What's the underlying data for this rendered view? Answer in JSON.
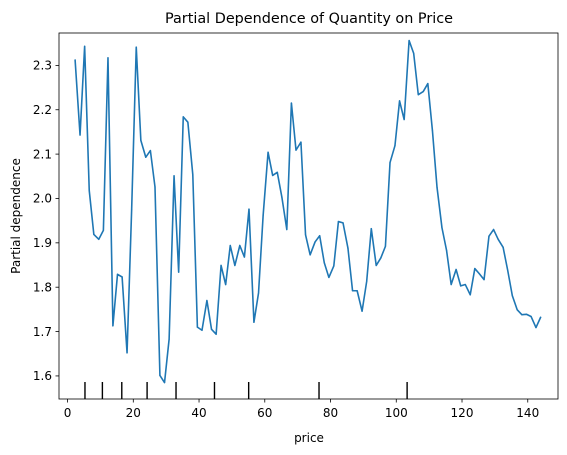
{
  "chart_data": {
    "type": "line",
    "title": "Partial Dependence of Quantity on Price",
    "xlabel": "price",
    "ylabel": "Partial dependence",
    "xlim": [
      -2.6,
      149.2
    ],
    "ylim": [
      1.548,
      2.373
    ],
    "xticks": [
      0,
      20,
      40,
      60,
      80,
      100,
      120,
      140
    ],
    "yticks": [
      1.6,
      1.7,
      1.8,
      1.9,
      2.0,
      2.1,
      2.2,
      2.3
    ],
    "grid": false,
    "line_color": "#1f77b4",
    "series": [
      {
        "x": [
          2.3,
          3.8,
          5.2,
          6.6,
          8.0,
          9.5,
          10.9,
          12.3,
          13.8,
          15.2,
          16.6,
          18.1,
          19.5,
          20.9,
          22.3,
          23.8,
          25.2,
          26.6,
          28.1,
          29.5,
          30.9,
          32.4,
          33.8,
          35.2,
          36.6,
          38.1,
          39.5,
          40.9,
          42.4,
          43.8,
          45.2,
          46.7,
          48.1,
          49.5,
          50.9,
          52.4,
          53.8,
          55.2,
          56.7,
          58.1,
          59.5,
          61.0,
          62.4,
          63.8,
          65.2,
          66.7,
          68.1,
          69.5,
          71.0,
          72.4,
          73.8,
          75.3,
          76.7,
          78.1,
          79.5,
          81.0,
          82.4,
          83.8,
          85.3,
          86.7,
          88.1,
          89.6,
          91.0,
          92.4,
          93.9,
          95.3,
          96.7,
          98.1,
          99.6,
          101.0,
          102.4,
          103.9,
          105.3,
          106.7,
          108.2,
          109.6,
          111.0,
          112.4,
          113.9,
          115.3,
          116.7,
          118.2,
          119.6,
          121.0,
          122.5,
          123.9,
          125.3,
          126.7,
          128.2,
          129.6,
          131.0,
          132.5,
          133.9,
          135.3,
          136.8,
          138.2,
          139.6,
          141.0,
          142.5,
          143.9
        ],
        "y": [
          2.312,
          2.143,
          2.343,
          2.018,
          1.919,
          1.908,
          1.928,
          2.317,
          1.713,
          1.829,
          1.823,
          1.652,
          1.975,
          2.341,
          2.131,
          2.093,
          2.108,
          2.026,
          1.601,
          1.585,
          1.683,
          2.051,
          1.834,
          2.184,
          2.172,
          2.054,
          1.71,
          1.703,
          1.77,
          1.705,
          1.694,
          1.849,
          1.806,
          1.894,
          1.849,
          1.894,
          1.868,
          1.976,
          1.721,
          1.787,
          1.962,
          2.104,
          2.052,
          2.059,
          2.003,
          1.93,
          2.215,
          2.109,
          2.127,
          1.918,
          1.873,
          1.902,
          1.916,
          1.855,
          1.822,
          1.848,
          1.948,
          1.945,
          1.888,
          1.792,
          1.792,
          1.746,
          1.813,
          1.932,
          1.849,
          1.866,
          1.892,
          2.081,
          2.119,
          2.22,
          2.178,
          2.356,
          2.327,
          2.234,
          2.241,
          2.259,
          2.153,
          2.025,
          1.934,
          1.883,
          1.806,
          1.84,
          1.803,
          1.806,
          1.783,
          1.842,
          1.83,
          1.817,
          1.915,
          1.93,
          1.908,
          1.89,
          1.838,
          1.781,
          1.749,
          1.738,
          1.739,
          1.734,
          1.709,
          1.732
        ]
      }
    ],
    "rug": [
      5.3,
      10.6,
      16.5,
      24.2,
      33.0,
      44.7,
      55.1,
      76.5,
      103.3
    ]
  }
}
